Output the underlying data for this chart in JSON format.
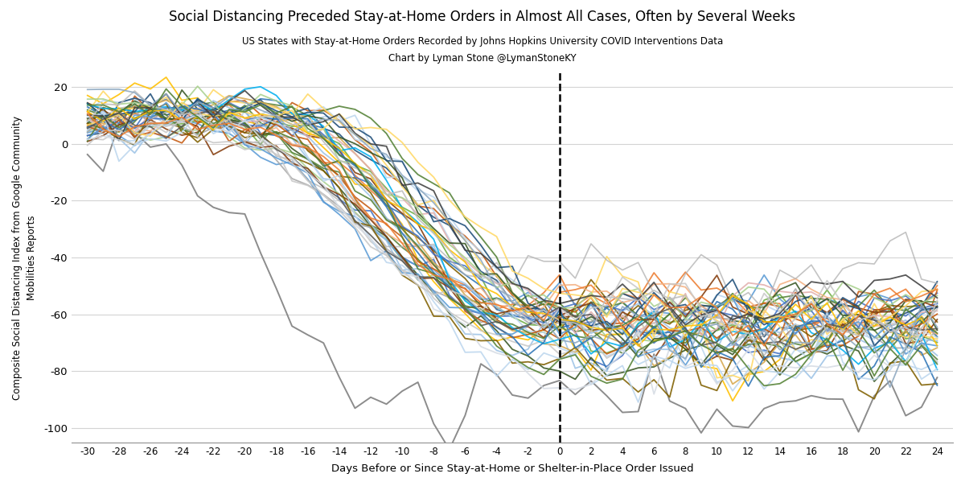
{
  "title": "Social Distancing Preceded Stay-at-Home Orders in Almost All Cases, Often by Several Weeks",
  "subtitle1": "US States with Stay-at-Home Orders Recorded by Johns Hopkins University COVID Interventions Data",
  "subtitle2": "Chart by Lyman Stone @LymanStoneKY",
  "xlabel": "Days Before or Since Stay-at-Home or Shelter-in-Place Order Issued",
  "ylabel": "Composite Social Distancing Index from Google Community\nMobilities Reports",
  "xmin": -31,
  "xmax": 25,
  "ymin": -105,
  "ymax": 25,
  "xticks": [
    -30,
    -28,
    -26,
    -24,
    -22,
    -20,
    -18,
    -16,
    -14,
    -12,
    -10,
    -8,
    -6,
    -4,
    -2,
    0,
    2,
    4,
    6,
    8,
    10,
    12,
    14,
    16,
    18,
    20,
    22,
    24
  ],
  "yticks": [
    20,
    0,
    -20,
    -40,
    -60,
    -80,
    -100
  ],
  "line_colors": [
    "#4472C4",
    "#ED7D31",
    "#A9D18E",
    "#FFC000",
    "#5B9BD5",
    "#70AD47",
    "#C55A11",
    "#375623",
    "#BDD7EE",
    "#806000",
    "#2E75B6",
    "#843C0C",
    "#548235",
    "#9DC3E6",
    "#1F4E79",
    "#538135",
    "#F4B183",
    "#D6A84E",
    "#A9A9A9",
    "#BDD7EE",
    "#9DC3E6",
    "#E2AFAD",
    "#C9C9C9",
    "#FFD966",
    "#4472C4",
    "#ED7D31",
    "#70AD47",
    "#C55A11",
    "#00B0F0",
    "#843C0C",
    "#375623",
    "#806000",
    "#1F4E79",
    "#538135",
    "#A9D18E",
    "#2E75B6",
    "#5B9BD5",
    "#FFD966",
    "#BDD7EE",
    "#FFC000",
    "#595959",
    "#404040",
    "#D6DCE4",
    "#BFBFBF",
    "#8EA9C1",
    "#C9C9C9",
    "#548235",
    "#ED7D31",
    "#70AD47",
    "#4472C4"
  ],
  "gray_line_color": "#808080",
  "light_gray_color": "#B0B0B0",
  "background_color": "#FFFFFF",
  "grid_color": "#D3D3D3"
}
